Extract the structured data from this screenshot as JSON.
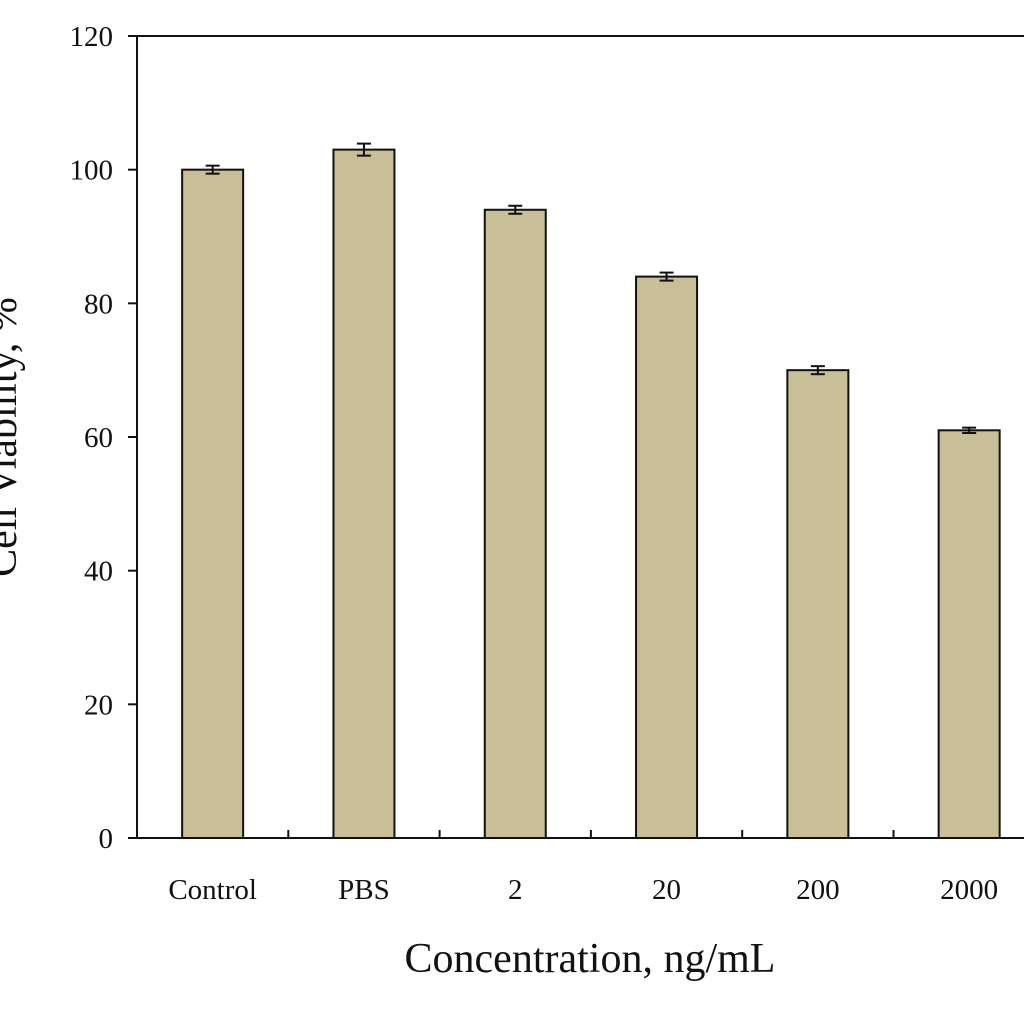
{
  "chart_data": {
    "type": "bar",
    "title": "",
    "xlabel": "Concentration, ng/mL",
    "ylabel": "Cell Viability, %",
    "categories": [
      "Control",
      "PBS",
      "2",
      "20",
      "200",
      "2000"
    ],
    "series": [
      {
        "values": [
          100,
          103,
          94,
          84,
          70,
          61
        ],
        "errors": [
          0.6,
          0.9,
          0.6,
          0.6,
          0.6,
          0.4
        ]
      }
    ],
    "ylim": [
      0,
      120
    ],
    "yticks": [
      "0",
      "20",
      "40",
      "60",
      "80",
      "100",
      "120"
    ],
    "grid": false,
    "legend": "none",
    "bar_color": "#c8bf98",
    "bar_edge_color": "#111111",
    "axis_color": "#111111"
  }
}
